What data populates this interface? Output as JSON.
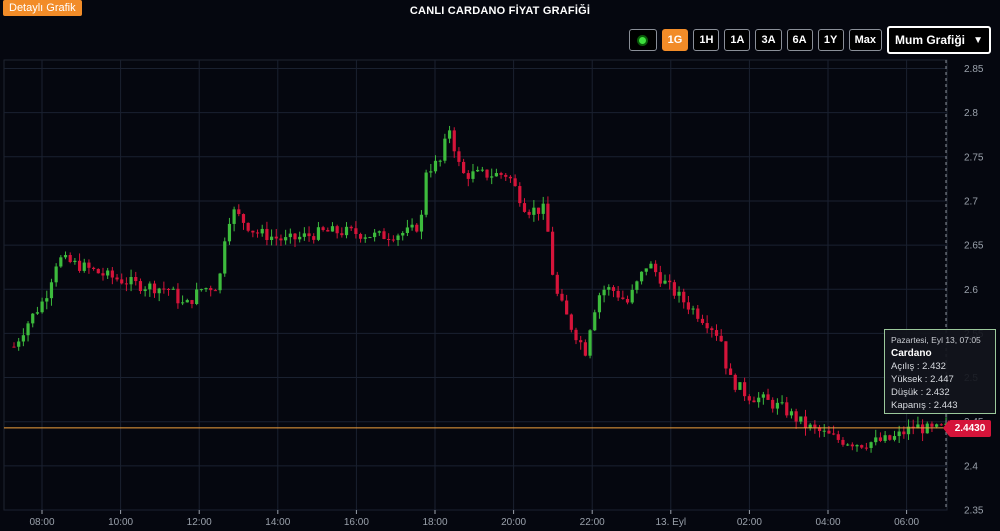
{
  "header": {
    "detail_label": "Detaylı Grafik",
    "title": "CANLI CARDANO FİYAT GRAFİĞİ"
  },
  "toolbar": {
    "live_icon": "live-status-dot",
    "ranges": [
      "1G",
      "1H",
      "1A",
      "3A",
      "6A",
      "1Y",
      "Max"
    ],
    "active_range": "1G",
    "chart_type": "Mum Grafiği"
  },
  "tooltip": {
    "date": "Pazartesi, Eyl 13, 07:05",
    "name": "Cardano",
    "open": "Açılış : 2.432",
    "high": "Yüksek : 2.447",
    "low": "Düşük : 2.432",
    "close": "Kapanış : 2.443"
  },
  "price_tag": "2.4430",
  "colors": {
    "up": "#3dbb3d",
    "down": "#d5143a",
    "accent": "#f28c28",
    "background": "#05070f"
  },
  "chart_data": {
    "type": "candlestick",
    "title": "CANLI CARDANO FİYAT GRAFİĞİ",
    "x_ticks": [
      "08:00",
      "10:00",
      "12:00",
      "14:00",
      "16:00",
      "18:00",
      "20:00",
      "22:00",
      "13. Eyl",
      "02:00",
      "04:00",
      "06:00"
    ],
    "y_ticks": [
      2.35,
      2.4,
      2.45,
      2.5,
      2.55,
      2.6,
      2.65,
      2.7,
      2.75,
      2.8,
      2.85
    ],
    "ylim": [
      2.35,
      2.855
    ],
    "grid": true,
    "current_price": 2.443,
    "series_anchor_prices": [
      [
        0,
        2.535
      ],
      [
        8,
        2.56
      ],
      [
        20,
        2.59
      ],
      [
        28,
        2.635
      ],
      [
        45,
        2.625
      ],
      [
        60,
        2.615
      ],
      [
        80,
        2.605
      ],
      [
        100,
        2.6
      ],
      [
        110,
        2.58
      ],
      [
        120,
        2.6
      ],
      [
        132,
        2.605
      ],
      [
        135,
        2.655
      ],
      [
        140,
        2.69
      ],
      [
        155,
        2.665
      ],
      [
        175,
        2.655
      ],
      [
        200,
        2.665
      ],
      [
        215,
        2.665
      ],
      [
        235,
        2.66
      ],
      [
        255,
        2.665
      ],
      [
        262,
        2.675
      ],
      [
        265,
        2.735
      ],
      [
        275,
        2.745
      ],
      [
        280,
        2.785
      ],
      [
        288,
        2.73
      ],
      [
        300,
        2.73
      ],
      [
        318,
        2.73
      ],
      [
        330,
        2.69
      ],
      [
        342,
        2.69
      ],
      [
        348,
        2.6
      ],
      [
        358,
        2.56
      ],
      [
        368,
        2.53
      ],
      [
        372,
        2.57
      ],
      [
        378,
        2.6
      ],
      [
        385,
        2.6
      ],
      [
        395,
        2.585
      ],
      [
        408,
        2.63
      ],
      [
        420,
        2.605
      ],
      [
        432,
        2.585
      ],
      [
        448,
        2.56
      ],
      [
        455,
        2.545
      ],
      [
        460,
        2.5
      ],
      [
        472,
        2.48
      ],
      [
        482,
        2.475
      ],
      [
        495,
        2.465
      ],
      [
        510,
        2.445
      ],
      [
        530,
        2.43
      ],
      [
        545,
        2.425
      ],
      [
        565,
        2.43
      ],
      [
        580,
        2.445
      ],
      [
        590,
        2.44
      ],
      [
        600,
        2.443
      ]
    ]
  }
}
